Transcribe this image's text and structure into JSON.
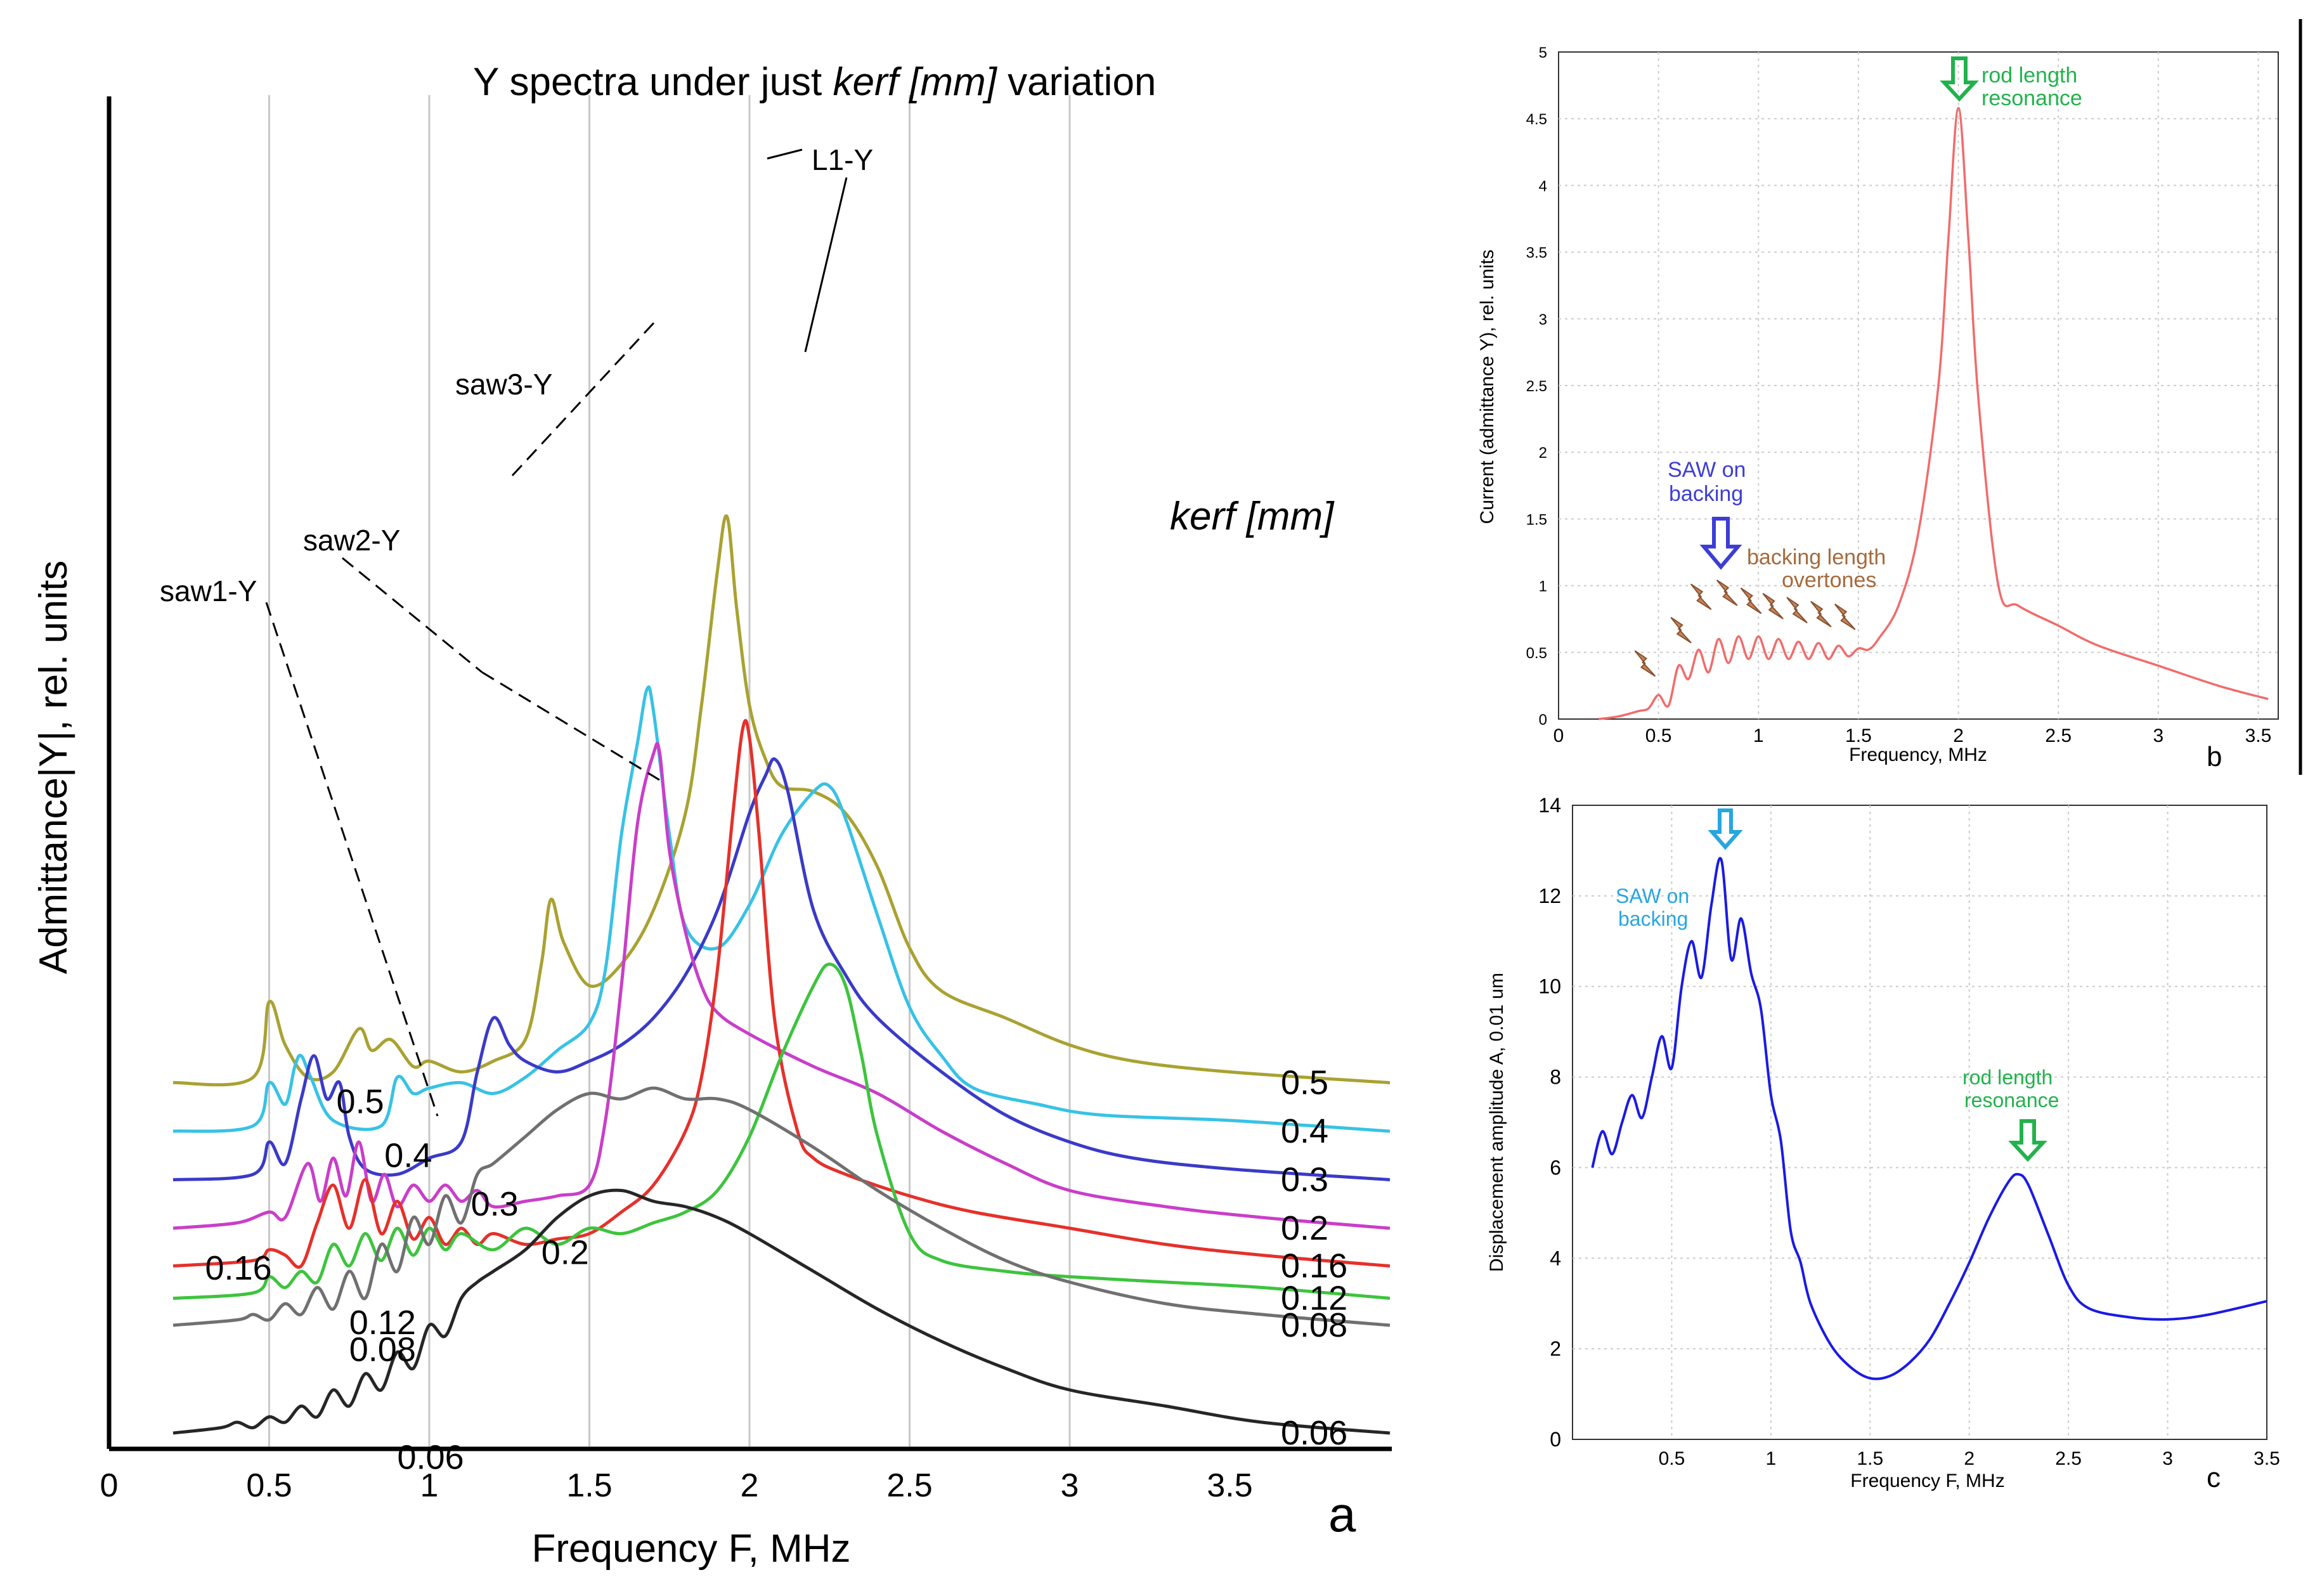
{
  "chart_data": [
    {
      "id": "a",
      "type": "line",
      "title_pre": "Y spectra under just ",
      "title_em": "kerf [mm]",
      "title_post": " variation",
      "xlabel": "Frequency F, MHz",
      "ylabel": "Admittance|Y|, rel. units",
      "panel_letter": "a",
      "legend_title": "kerf [mm]",
      "xlim": [
        0,
        4.0
      ],
      "xticks": [
        "0",
        "0.5",
        "1",
        "1.5",
        "2",
        "2.5",
        "3",
        "3.5"
      ],
      "annotations": [
        "saw1-Y",
        "saw2-Y",
        "saw3-Y",
        "L1-Y"
      ],
      "series": [
        {
          "name": "0.5",
          "label": "0.5",
          "inline_label": "0.5",
          "color": "#a9a232",
          "offset": 0.45,
          "x": [
            0.2,
            0.45,
            0.5,
            0.55,
            0.62,
            0.7,
            0.78,
            0.82,
            0.88,
            0.95,
            1.0,
            1.1,
            1.2,
            1.3,
            1.35,
            1.38,
            1.42,
            1.5,
            1.6,
            1.7,
            1.8,
            1.85,
            1.9,
            1.93,
            1.96,
            2.0,
            2.05,
            2.1,
            2.2,
            2.3,
            2.4,
            2.5,
            2.6,
            2.8,
            3.0,
            3.2,
            3.5,
            4.0
          ],
          "y": [
            0,
            0.01,
            0.15,
            0.07,
            0.01,
            0.02,
            0.1,
            0.06,
            0.08,
            0.03,
            0.04,
            0.02,
            0.04,
            0.08,
            0.22,
            0.34,
            0.26,
            0.18,
            0.22,
            0.32,
            0.5,
            0.7,
            0.95,
            1.05,
            0.88,
            0.7,
            0.6,
            0.55,
            0.54,
            0.5,
            0.4,
            0.25,
            0.17,
            0.12,
            0.07,
            0.04,
            0.02,
            0.0
          ]
        },
        {
          "name": "0.4",
          "label": "0.4",
          "inline_label": "0.4",
          "color": "#37c2e6",
          "offset": 0.36,
          "x": [
            0.2,
            0.45,
            0.5,
            0.55,
            0.58,
            0.6,
            0.63,
            0.7,
            0.85,
            0.9,
            0.95,
            1.0,
            1.1,
            1.2,
            1.3,
            1.4,
            1.5,
            1.55,
            1.6,
            1.65,
            1.68,
            1.7,
            1.75,
            1.8,
            1.9,
            2.0,
            2.1,
            2.2,
            2.25,
            2.3,
            2.4,
            2.5,
            2.6,
            2.7,
            2.9,
            3.1,
            3.5,
            4.0
          ],
          "y": [
            0,
            0.01,
            0.09,
            0.05,
            0.12,
            0.14,
            0.1,
            0.02,
            0.01,
            0.1,
            0.07,
            0.08,
            0.09,
            0.07,
            0.1,
            0.15,
            0.2,
            0.3,
            0.55,
            0.72,
            0.82,
            0.78,
            0.55,
            0.38,
            0.34,
            0.42,
            0.55,
            0.63,
            0.64,
            0.58,
            0.4,
            0.23,
            0.14,
            0.08,
            0.05,
            0.03,
            0.02,
            0.0
          ]
        },
        {
          "name": "0.3",
          "label": "0.3",
          "inline_label": "0.3",
          "color": "#3a3ac8",
          "offset": 0.27,
          "x": [
            0.2,
            0.45,
            0.5,
            0.55,
            0.6,
            0.64,
            0.68,
            0.72,
            0.75,
            0.8,
            0.9,
            1.0,
            1.1,
            1.15,
            1.2,
            1.25,
            1.3,
            1.4,
            1.5,
            1.6,
            1.7,
            1.8,
            1.9,
            2.0,
            2.05,
            2.08,
            2.12,
            2.2,
            2.3,
            2.4,
            2.6,
            2.8,
            3.0,
            3.2,
            3.5,
            4.0
          ],
          "y": [
            0,
            0.01,
            0.07,
            0.03,
            0.15,
            0.23,
            0.15,
            0.18,
            0.08,
            0.02,
            0.01,
            0.04,
            0.07,
            0.2,
            0.3,
            0.25,
            0.22,
            0.2,
            0.22,
            0.25,
            0.3,
            0.38,
            0.5,
            0.68,
            0.75,
            0.78,
            0.72,
            0.5,
            0.38,
            0.3,
            0.2,
            0.12,
            0.07,
            0.04,
            0.02,
            0.0
          ]
        },
        {
          "name": "0.2",
          "label": "0.2",
          "inline_label": "0.2",
          "color": "#c93ec9",
          "offset": 0.18,
          "x": [
            0.2,
            0.4,
            0.5,
            0.55,
            0.62,
            0.66,
            0.7,
            0.74,
            0.78,
            0.82,
            0.86,
            0.9,
            0.95,
            1.0,
            1.05,
            1.1,
            1.15,
            1.2,
            1.3,
            1.4,
            1.5,
            1.55,
            1.6,
            1.65,
            1.7,
            1.72,
            1.75,
            1.8,
            1.85,
            1.9,
            2.0,
            2.2,
            2.4,
            2.6,
            2.8,
            3.0,
            3.3,
            3.6,
            4.0
          ],
          "y": [
            0,
            0.01,
            0.03,
            0.02,
            0.12,
            0.05,
            0.13,
            0.06,
            0.16,
            0.05,
            0.1,
            0.04,
            0.08,
            0.05,
            0.08,
            0.05,
            0.07,
            0.04,
            0.05,
            0.06,
            0.08,
            0.2,
            0.45,
            0.75,
            0.88,
            0.88,
            0.7,
            0.55,
            0.45,
            0.4,
            0.36,
            0.3,
            0.25,
            0.18,
            0.12,
            0.07,
            0.04,
            0.02,
            0.0
          ]
        },
        {
          "name": "0.16",
          "label": "0.16",
          "inline_label": "0.16",
          "color": "#e6302a",
          "offset": 0.11,
          "x": [
            0.2,
            0.45,
            0.5,
            0.55,
            0.6,
            0.65,
            0.7,
            0.75,
            0.8,
            0.85,
            0.9,
            0.95,
            1.0,
            1.05,
            1.1,
            1.15,
            1.2,
            1.3,
            1.4,
            1.5,
            1.6,
            1.7,
            1.8,
            1.85,
            1.9,
            1.95,
            1.98,
            2.0,
            2.03,
            2.08,
            2.15,
            2.2,
            2.3,
            2.5,
            2.7,
            3.0,
            3.3,
            3.6,
            4.0
          ],
          "y": [
            0,
            0.01,
            0.03,
            0.02,
            0.0,
            0.08,
            0.15,
            0.07,
            0.16,
            0.06,
            0.12,
            0.05,
            0.09,
            0.04,
            0.07,
            0.04,
            0.06,
            0.04,
            0.05,
            0.06,
            0.1,
            0.15,
            0.25,
            0.35,
            0.55,
            0.85,
            1.0,
            0.98,
            0.8,
            0.45,
            0.25,
            0.2,
            0.17,
            0.13,
            0.1,
            0.07,
            0.04,
            0.02,
            0.0
          ]
        },
        {
          "name": "0.12",
          "label": "0.12",
          "inline_label": "0.12",
          "color": "#3dc43d",
          "offset": 0.05,
          "x": [
            0.2,
            0.45,
            0.5,
            0.55,
            0.6,
            0.65,
            0.7,
            0.75,
            0.8,
            0.85,
            0.9,
            0.95,
            1.0,
            1.05,
            1.1,
            1.2,
            1.3,
            1.4,
            1.5,
            1.6,
            1.7,
            1.8,
            1.9,
            2.0,
            2.1,
            2.2,
            2.25,
            2.3,
            2.35,
            2.4,
            2.5,
            2.6,
            2.8,
            3.0,
            3.3,
            3.6,
            4.0
          ],
          "y": [
            0,
            0.01,
            0.04,
            0.02,
            0.05,
            0.03,
            0.1,
            0.06,
            0.12,
            0.07,
            0.13,
            0.08,
            0.13,
            0.09,
            0.12,
            0.09,
            0.13,
            0.1,
            0.13,
            0.12,
            0.14,
            0.16,
            0.2,
            0.3,
            0.45,
            0.58,
            0.62,
            0.58,
            0.45,
            0.3,
            0.12,
            0.07,
            0.05,
            0.04,
            0.03,
            0.02,
            0.0
          ]
        },
        {
          "name": "0.08",
          "label": "0.08",
          "inline_label": "0.08",
          "color": "#707070",
          "offset": 0.0,
          "x": [
            0.2,
            0.4,
            0.45,
            0.5,
            0.55,
            0.6,
            0.65,
            0.7,
            0.75,
            0.8,
            0.85,
            0.9,
            0.95,
            1.0,
            1.05,
            1.1,
            1.15,
            1.2,
            1.3,
            1.4,
            1.5,
            1.6,
            1.7,
            1.8,
            1.9,
            2.0,
            2.2,
            2.4,
            2.6,
            2.8,
            3.0,
            3.3,
            3.6,
            4.0
          ],
          "y": [
            0,
            0.01,
            0.02,
            0.01,
            0.04,
            0.02,
            0.07,
            0.03,
            0.1,
            0.05,
            0.15,
            0.1,
            0.2,
            0.15,
            0.24,
            0.19,
            0.28,
            0.3,
            0.35,
            0.4,
            0.43,
            0.42,
            0.44,
            0.42,
            0.42,
            0.4,
            0.33,
            0.25,
            0.18,
            0.12,
            0.08,
            0.04,
            0.02,
            0.0
          ]
        },
        {
          "name": "0.06",
          "label": "0.06",
          "inline_label": "0.06",
          "color": "#262626",
          "offset": -0.2,
          "x": [
            0.2,
            0.35,
            0.4,
            0.45,
            0.5,
            0.55,
            0.6,
            0.65,
            0.7,
            0.75,
            0.8,
            0.85,
            0.9,
            0.95,
            1.0,
            1.05,
            1.1,
            1.15,
            1.2,
            1.3,
            1.4,
            1.5,
            1.6,
            1.7,
            1.8,
            1.9,
            2.0,
            2.2,
            2.4,
            2.6,
            2.8,
            3.0,
            3.3,
            3.6,
            4.0
          ],
          "y": [
            0,
            0.01,
            0.02,
            0.01,
            0.03,
            0.02,
            0.05,
            0.03,
            0.08,
            0.05,
            0.11,
            0.08,
            0.15,
            0.12,
            0.2,
            0.18,
            0.25,
            0.28,
            0.3,
            0.34,
            0.4,
            0.44,
            0.45,
            0.43,
            0.42,
            0.4,
            0.37,
            0.3,
            0.23,
            0.17,
            0.12,
            0.08,
            0.05,
            0.02,
            0.0
          ]
        }
      ]
    },
    {
      "id": "b",
      "type": "line",
      "xlabel": "Frequency, MHz",
      "ylabel": "Current (admittance Y), rel. units",
      "panel_letter": "b",
      "xlim": [
        0,
        3.6
      ],
      "ylim": [
        0,
        5
      ],
      "xticks": [
        "0",
        "0.5",
        "1",
        "1.5",
        "2",
        "2.5",
        "3",
        "3.5"
      ],
      "yticks": [
        "0",
        "0.5",
        "1",
        "1.5",
        "2",
        "2.5",
        "3",
        "3.5",
        "4",
        "4.5",
        "5"
      ],
      "annotations": [
        "rod length",
        "resonance",
        "SAW on",
        "backing",
        "backing length",
        "overtones"
      ],
      "series": [
        {
          "name": "Y",
          "color": "#f26b6b",
          "x": [
            0.2,
            0.3,
            0.4,
            0.45,
            0.5,
            0.55,
            0.6,
            0.65,
            0.7,
            0.75,
            0.8,
            0.85,
            0.9,
            0.95,
            1.0,
            1.05,
            1.1,
            1.15,
            1.2,
            1.25,
            1.3,
            1.35,
            1.4,
            1.45,
            1.5,
            1.55,
            1.6,
            1.7,
            1.8,
            1.9,
            1.95,
            2.0,
            2.05,
            2.1,
            2.2,
            2.3,
            2.5,
            2.7,
            3.0,
            3.3,
            3.55
          ],
          "y": [
            0,
            0.02,
            0.06,
            0.08,
            0.18,
            0.1,
            0.4,
            0.3,
            0.52,
            0.35,
            0.6,
            0.42,
            0.62,
            0.45,
            0.62,
            0.45,
            0.6,
            0.45,
            0.58,
            0.45,
            0.57,
            0.45,
            0.55,
            0.47,
            0.53,
            0.52,
            0.6,
            0.85,
            1.4,
            2.5,
            3.6,
            4.58,
            3.6,
            2.4,
            1.0,
            0.85,
            0.7,
            0.55,
            0.4,
            0.25,
            0.15
          ]
        }
      ]
    },
    {
      "id": "c",
      "type": "line",
      "xlabel": "Frequency F, MHz",
      "ylabel": "Displacement amplitude A, 0.01 um",
      "panel_letter": "c",
      "xlim": [
        0,
        3.5
      ],
      "ylim": [
        0,
        14
      ],
      "xticks": [
        "0.5",
        "1",
        "1.5",
        "2",
        "2.5",
        "3",
        "3.5"
      ],
      "yticks": [
        "0",
        "2",
        "4",
        "6",
        "8",
        "10",
        "12",
        "14"
      ],
      "annotations": [
        "SAW on",
        "backing",
        "rod length",
        "resonance"
      ],
      "series": [
        {
          "name": "A",
          "color": "#1a1ae6",
          "x": [
            0.1,
            0.15,
            0.2,
            0.25,
            0.3,
            0.35,
            0.4,
            0.45,
            0.5,
            0.55,
            0.6,
            0.65,
            0.7,
            0.75,
            0.8,
            0.85,
            0.9,
            0.95,
            1.0,
            1.05,
            1.1,
            1.15,
            1.2,
            1.3,
            1.4,
            1.5,
            1.6,
            1.7,
            1.8,
            1.9,
            2.0,
            2.1,
            2.2,
            2.25,
            2.3,
            2.4,
            2.5,
            2.6,
            2.8,
            3.0,
            3.2,
            3.5
          ],
          "y": [
            6.0,
            6.8,
            6.3,
            7.0,
            7.6,
            7.1,
            8.0,
            8.9,
            8.2,
            10.0,
            11.0,
            10.2,
            11.8,
            12.8,
            10.6,
            11.5,
            10.3,
            9.5,
            7.6,
            6.6,
            4.6,
            3.9,
            3.0,
            2.1,
            1.6,
            1.35,
            1.4,
            1.7,
            2.2,
            3.0,
            3.9,
            4.9,
            5.7,
            5.85,
            5.6,
            4.5,
            3.4,
            2.9,
            2.7,
            2.65,
            2.75,
            3.05
          ]
        }
      ]
    }
  ]
}
